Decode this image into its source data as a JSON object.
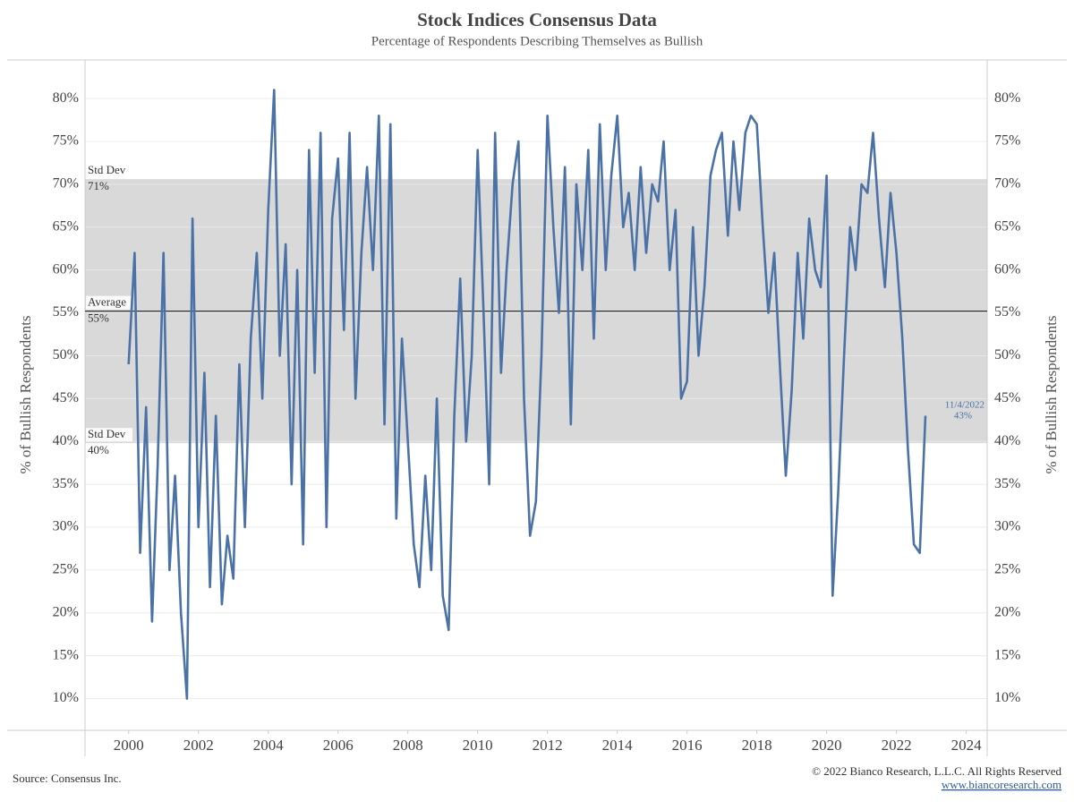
{
  "chart_data": {
    "type": "line",
    "title": "Stock Indices Consensus Data",
    "subtitle": "Percentage of Respondents Describing Themselves as Bullish",
    "y_label": "% of Bullish Respondents",
    "y2_label": "% of Bullish Respondents",
    "source": "Source: Consensus Inc.",
    "copyright": "© 2022 Bianco Research, L.L.C. All Rights Reserved",
    "url": "www.biancoresearch.com",
    "xlim": [
      1998.75,
      2024.6
    ],
    "xticks": [
      2000,
      2002,
      2004,
      2006,
      2008,
      2010,
      2012,
      2014,
      2016,
      2018,
      2020,
      2022,
      2024
    ],
    "ylim": [
      6.3,
      84.5
    ],
    "yticks": [
      {
        "value": 10,
        "label": "10%"
      },
      {
        "value": 15,
        "label": "15%"
      },
      {
        "value": 20,
        "label": "20%"
      },
      {
        "value": 25,
        "label": "25%"
      },
      {
        "value": 30,
        "label": "30%"
      },
      {
        "value": 35,
        "label": "35%"
      },
      {
        "value": 40,
        "label": "40%"
      },
      {
        "value": 45,
        "label": "45%"
      },
      {
        "value": 50,
        "label": "50%"
      },
      {
        "value": 55,
        "label": "55%"
      },
      {
        "value": 60,
        "label": "60%"
      },
      {
        "value": 65,
        "label": "65%"
      },
      {
        "value": 70,
        "label": "70%"
      },
      {
        "value": 75,
        "label": "75%"
      },
      {
        "value": 80,
        "label": "80%"
      }
    ],
    "y2lim": [
      6.3,
      84.5
    ],
    "y2ticks": [
      {
        "value": 10,
        "label": "10%"
      },
      {
        "value": 15,
        "label": "15%"
      },
      {
        "value": 20,
        "label": "20%"
      },
      {
        "value": 25,
        "label": "25%"
      },
      {
        "value": 30,
        "label": "30%"
      },
      {
        "value": 35,
        "label": "35%"
      },
      {
        "value": 40,
        "label": "40%"
      },
      {
        "value": 45,
        "label": "45%"
      },
      {
        "value": 50,
        "label": "50%"
      },
      {
        "value": 55,
        "label": "55%"
      },
      {
        "value": 60,
        "label": "60%"
      },
      {
        "value": 65,
        "label": "65%"
      },
      {
        "value": 70,
        "label": "70%"
      },
      {
        "value": 75,
        "label": "75%"
      },
      {
        "value": 80,
        "label": "80%"
      }
    ],
    "grid": true,
    "band_color": "#d9d9d9",
    "reference_lines": [
      {
        "name": "Std Dev",
        "value": 70.6,
        "value_label": "71%"
      },
      {
        "name": "Average",
        "value": 55.2,
        "value_label": "55%"
      },
      {
        "name": "Std Dev",
        "value": 39.8,
        "value_label": "40%"
      }
    ],
    "annotation": {
      "text": "11/4/2022",
      "value": 43,
      "value_label": "43%"
    },
    "x": [
      2000,
      2000.17,
      2000.33,
      2000.5,
      2000.67,
      2000.83,
      2001,
      2001.17,
      2001.33,
      2001.5,
      2001.67,
      2001.83,
      2002,
      2002.17,
      2002.33,
      2002.5,
      2002.67,
      2002.83,
      2003,
      2003.17,
      2003.33,
      2003.5,
      2003.67,
      2003.83,
      2004,
      2004.17,
      2004.33,
      2004.5,
      2004.67,
      2004.83,
      2005,
      2005.17,
      2005.33,
      2005.5,
      2005.67,
      2005.83,
      2006,
      2006.17,
      2006.33,
      2006.5,
      2006.67,
      2006.83,
      2007,
      2007.17,
      2007.33,
      2007.5,
      2007.67,
      2007.83,
      2008,
      2008.17,
      2008.33,
      2008.5,
      2008.67,
      2008.83,
      2009,
      2009.17,
      2009.33,
      2009.5,
      2009.67,
      2009.83,
      2010,
      2010.17,
      2010.33,
      2010.5,
      2010.67,
      2010.83,
      2011,
      2011.17,
      2011.33,
      2011.5,
      2011.67,
      2011.83,
      2012,
      2012.17,
      2012.33,
      2012.5,
      2012.67,
      2012.83,
      2013,
      2013.17,
      2013.33,
      2013.5,
      2013.67,
      2013.83,
      2014,
      2014.17,
      2014.33,
      2014.5,
      2014.67,
      2014.83,
      2015,
      2015.17,
      2015.33,
      2015.5,
      2015.67,
      2015.83,
      2016,
      2016.17,
      2016.33,
      2016.5,
      2016.67,
      2016.83,
      2017,
      2017.17,
      2017.33,
      2017.5,
      2017.67,
      2017.83,
      2018,
      2018.17,
      2018.33,
      2018.5,
      2018.67,
      2018.83,
      2019,
      2019.17,
      2019.33,
      2019.5,
      2019.67,
      2019.83,
      2020,
      2020.17,
      2020.33,
      2020.5,
      2020.67,
      2020.83,
      2021,
      2021.17,
      2021.33,
      2021.5,
      2021.67,
      2021.83,
      2022,
      2022.17,
      2022.33,
      2022.5,
      2022.67,
      2022.83
    ],
    "series": [
      {
        "color": "#4a72a6",
        "values": [
          49,
          62,
          27,
          44,
          19,
          37,
          62,
          25,
          36,
          20,
          10,
          66,
          30,
          48,
          23,
          43,
          21,
          29,
          24,
          49,
          30,
          52,
          62,
          45,
          67,
          81,
          50,
          63,
          35,
          60,
          28,
          74,
          48,
          76,
          30,
          66,
          73,
          53,
          76,
          45,
          62,
          72,
          60,
          78,
          42,
          77,
          31,
          52,
          40,
          28,
          23,
          36,
          25,
          45,
          22,
          18,
          43,
          59,
          40,
          50,
          74,
          55,
          35,
          76,
          48,
          60,
          70,
          75,
          45,
          29,
          33,
          50,
          78,
          65,
          55,
          72,
          42,
          70,
          60,
          74,
          52,
          77,
          60,
          71,
          78,
          65,
          69,
          60,
          72,
          62,
          70,
          68,
          75,
          60,
          67,
          45,
          47,
          65,
          50,
          58,
          71,
          74,
          76,
          64,
          75,
          67,
          76,
          78,
          77,
          65,
          55,
          62,
          48,
          36,
          46,
          62,
          52,
          66,
          60,
          58,
          71,
          22,
          34,
          50,
          65,
          60,
          70,
          69,
          76,
          66,
          58,
          69,
          62,
          52,
          39,
          28,
          27,
          43
        ]
      }
    ]
  }
}
